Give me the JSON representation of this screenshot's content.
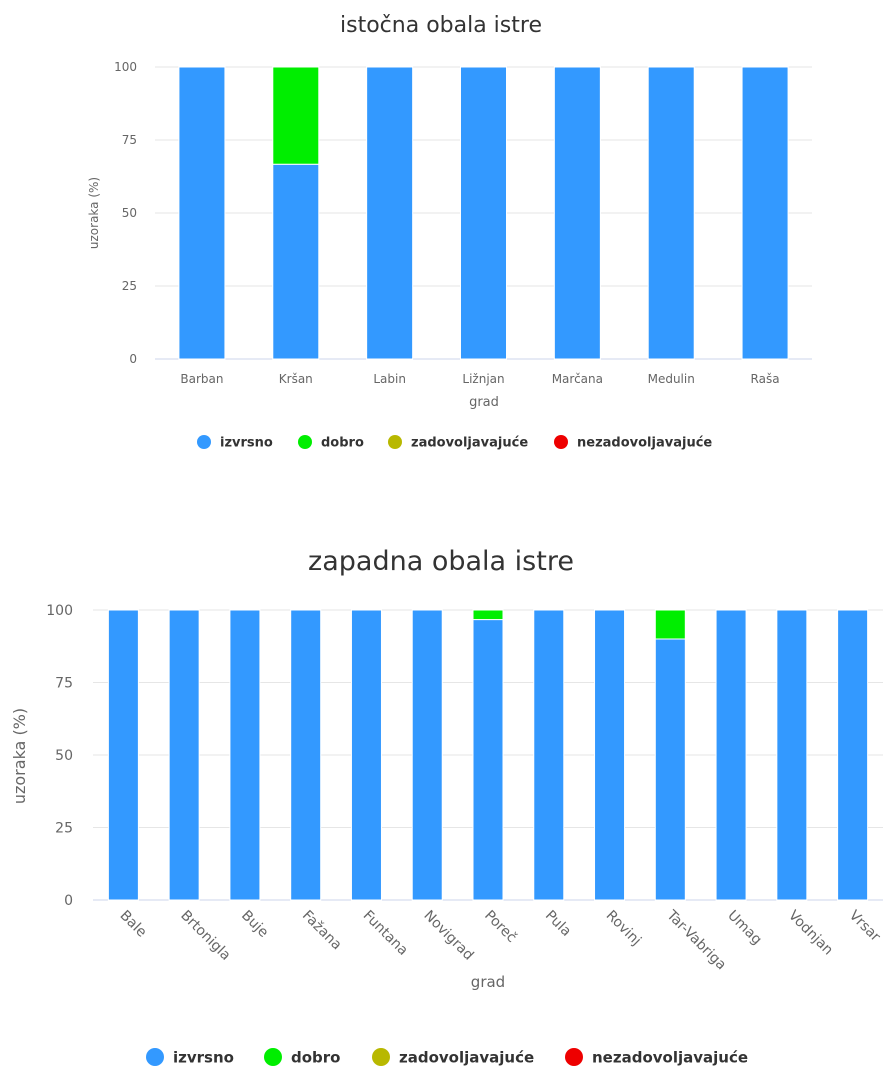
{
  "chart_data": [
    {
      "type": "bar",
      "stacked": true,
      "title": "istočna obala istre",
      "xlabel": "grad",
      "ylabel": "uzoraka (%)",
      "ylim": [
        0,
        100
      ],
      "yticks": [
        0,
        25,
        50,
        75,
        100
      ],
      "grid": true,
      "legend_position": "bottom",
      "categories": [
        "Barban",
        "Kršan",
        "Labin",
        "Ližnjan",
        "Marčana",
        "Medulin",
        "Raša"
      ],
      "series": [
        {
          "name": "izvrsno",
          "color": "#3399ff",
          "values": [
            100,
            66.7,
            100,
            100,
            100,
            100,
            100
          ]
        },
        {
          "name": "dobro",
          "color": "#00ee00",
          "values": [
            0,
            33.3,
            0,
            0,
            0,
            0,
            0
          ]
        },
        {
          "name": "zadovoljavajuće",
          "color": "#b8b800",
          "values": [
            0,
            0,
            0,
            0,
            0,
            0,
            0
          ]
        },
        {
          "name": "nezadovoljavajuće",
          "color": "#ee0000",
          "values": [
            0,
            0,
            0,
            0,
            0,
            0,
            0
          ]
        }
      ]
    },
    {
      "type": "bar",
      "stacked": true,
      "title": "zapadna obala istre",
      "xlabel": "grad",
      "ylabel": "uzoraka (%)",
      "ylim": [
        0,
        100
      ],
      "yticks": [
        0,
        25,
        50,
        75,
        100
      ],
      "grid": true,
      "legend_position": "bottom",
      "categories": [
        "Bale",
        "Brtonigla",
        "Buje",
        "Fažana",
        "Funtana",
        "Novigrad",
        "Poreč",
        "Pula",
        "Rovinj",
        "Tar-Vabriga",
        "Umag",
        "Vodnjan",
        "Vrsar"
      ],
      "series": [
        {
          "name": "izvrsno",
          "color": "#3399ff",
          "values": [
            100,
            100,
            100,
            100,
            100,
            100,
            96.7,
            100,
            100,
            90,
            100,
            100,
            100
          ]
        },
        {
          "name": "dobro",
          "color": "#00ee00",
          "values": [
            0,
            0,
            0,
            0,
            0,
            0,
            3.3,
            0,
            0,
            10,
            0,
            0,
            0
          ]
        },
        {
          "name": "zadovoljavajuće",
          "color": "#b8b800",
          "values": [
            0,
            0,
            0,
            0,
            0,
            0,
            0,
            0,
            0,
            0,
            0,
            0,
            0
          ]
        },
        {
          "name": "nezadovoljavajuće",
          "color": "#ee0000",
          "values": [
            0,
            0,
            0,
            0,
            0,
            0,
            0,
            0,
            0,
            0,
            0,
            0,
            0
          ]
        }
      ]
    }
  ]
}
